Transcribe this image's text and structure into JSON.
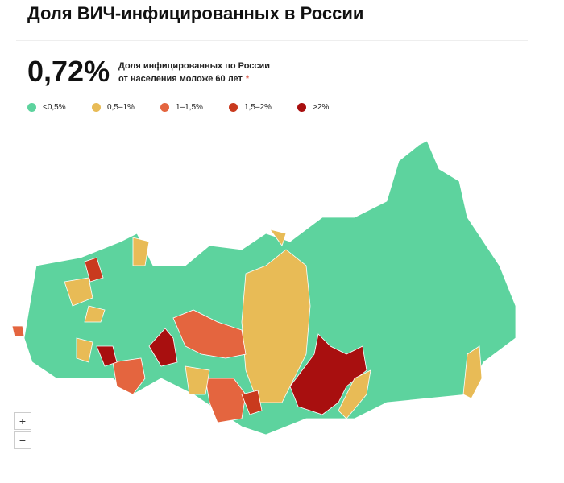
{
  "header": {
    "title": "Доля ВИЧ-инфицированных в России"
  },
  "summary": {
    "value": "0,72%",
    "line1": "Доля инфицированных по России",
    "line2": "от населения моложе 60 лет",
    "note": "*"
  },
  "legend": [
    {
      "label": "<0,5%",
      "color": "#5dd39e"
    },
    {
      "label": "0,5–1%",
      "color": "#e8bb56"
    },
    {
      "label": "1–1,5%",
      "color": "#e4653f"
    },
    {
      "label": "1,5–2%",
      "color": "#c93a1e"
    },
    {
      "label": ">2%",
      "color": "#a80f0f"
    }
  ],
  "zoom": {
    "in": "+",
    "out": "−"
  }
}
